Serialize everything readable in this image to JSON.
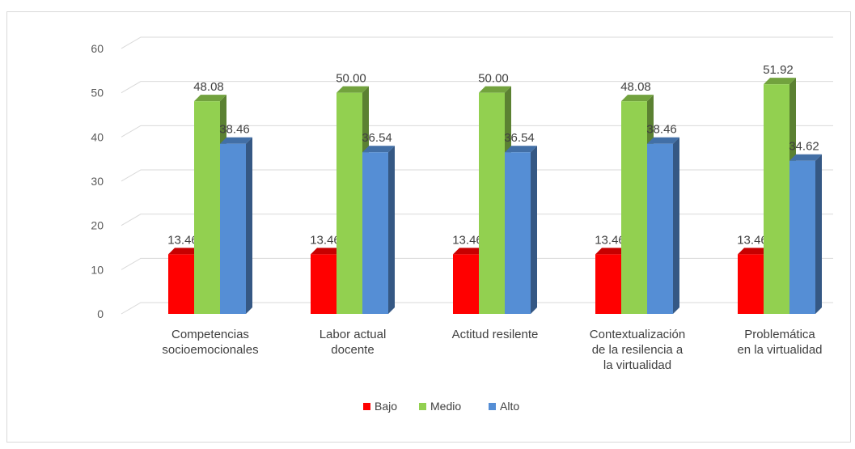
{
  "chart_data": {
    "type": "bar",
    "title": "",
    "xlabel": "",
    "ylabel": "",
    "ylim": [
      0,
      60
    ],
    "yticks": [
      0,
      10,
      20,
      30,
      40,
      50,
      60
    ],
    "grid": true,
    "legend_position": "bottom",
    "categories": [
      [
        "Competencias",
        "socioemocionales"
      ],
      [
        "Labor actual",
        "docente"
      ],
      [
        "Actitud resilente"
      ],
      [
        "Contextualización",
        "de la resilencia a",
        "la virtualidad"
      ],
      [
        "Problemática",
        "en la virtualidad"
      ]
    ],
    "series": [
      {
        "name": "Bajo",
        "color": "#ff0000",
        "values": [
          13.46,
          13.46,
          13.46,
          13.46,
          13.46
        ],
        "labels": [
          "13.46",
          "13.46",
          "13.46",
          "13.46",
          "13.46"
        ]
      },
      {
        "name": "Medio",
        "color": "#92d050",
        "values": [
          48.08,
          50.0,
          50.0,
          48.08,
          51.92
        ],
        "labels": [
          "48.08",
          "50.00",
          "50.00",
          "48.08",
          "51.92"
        ]
      },
      {
        "name": "Alto",
        "color": "#558ed5",
        "values": [
          38.46,
          36.54,
          36.54,
          38.46,
          34.62
        ],
        "labels": [
          "38.46",
          "36.54",
          "36.54",
          "38.46",
          "34.62"
        ]
      }
    ]
  }
}
